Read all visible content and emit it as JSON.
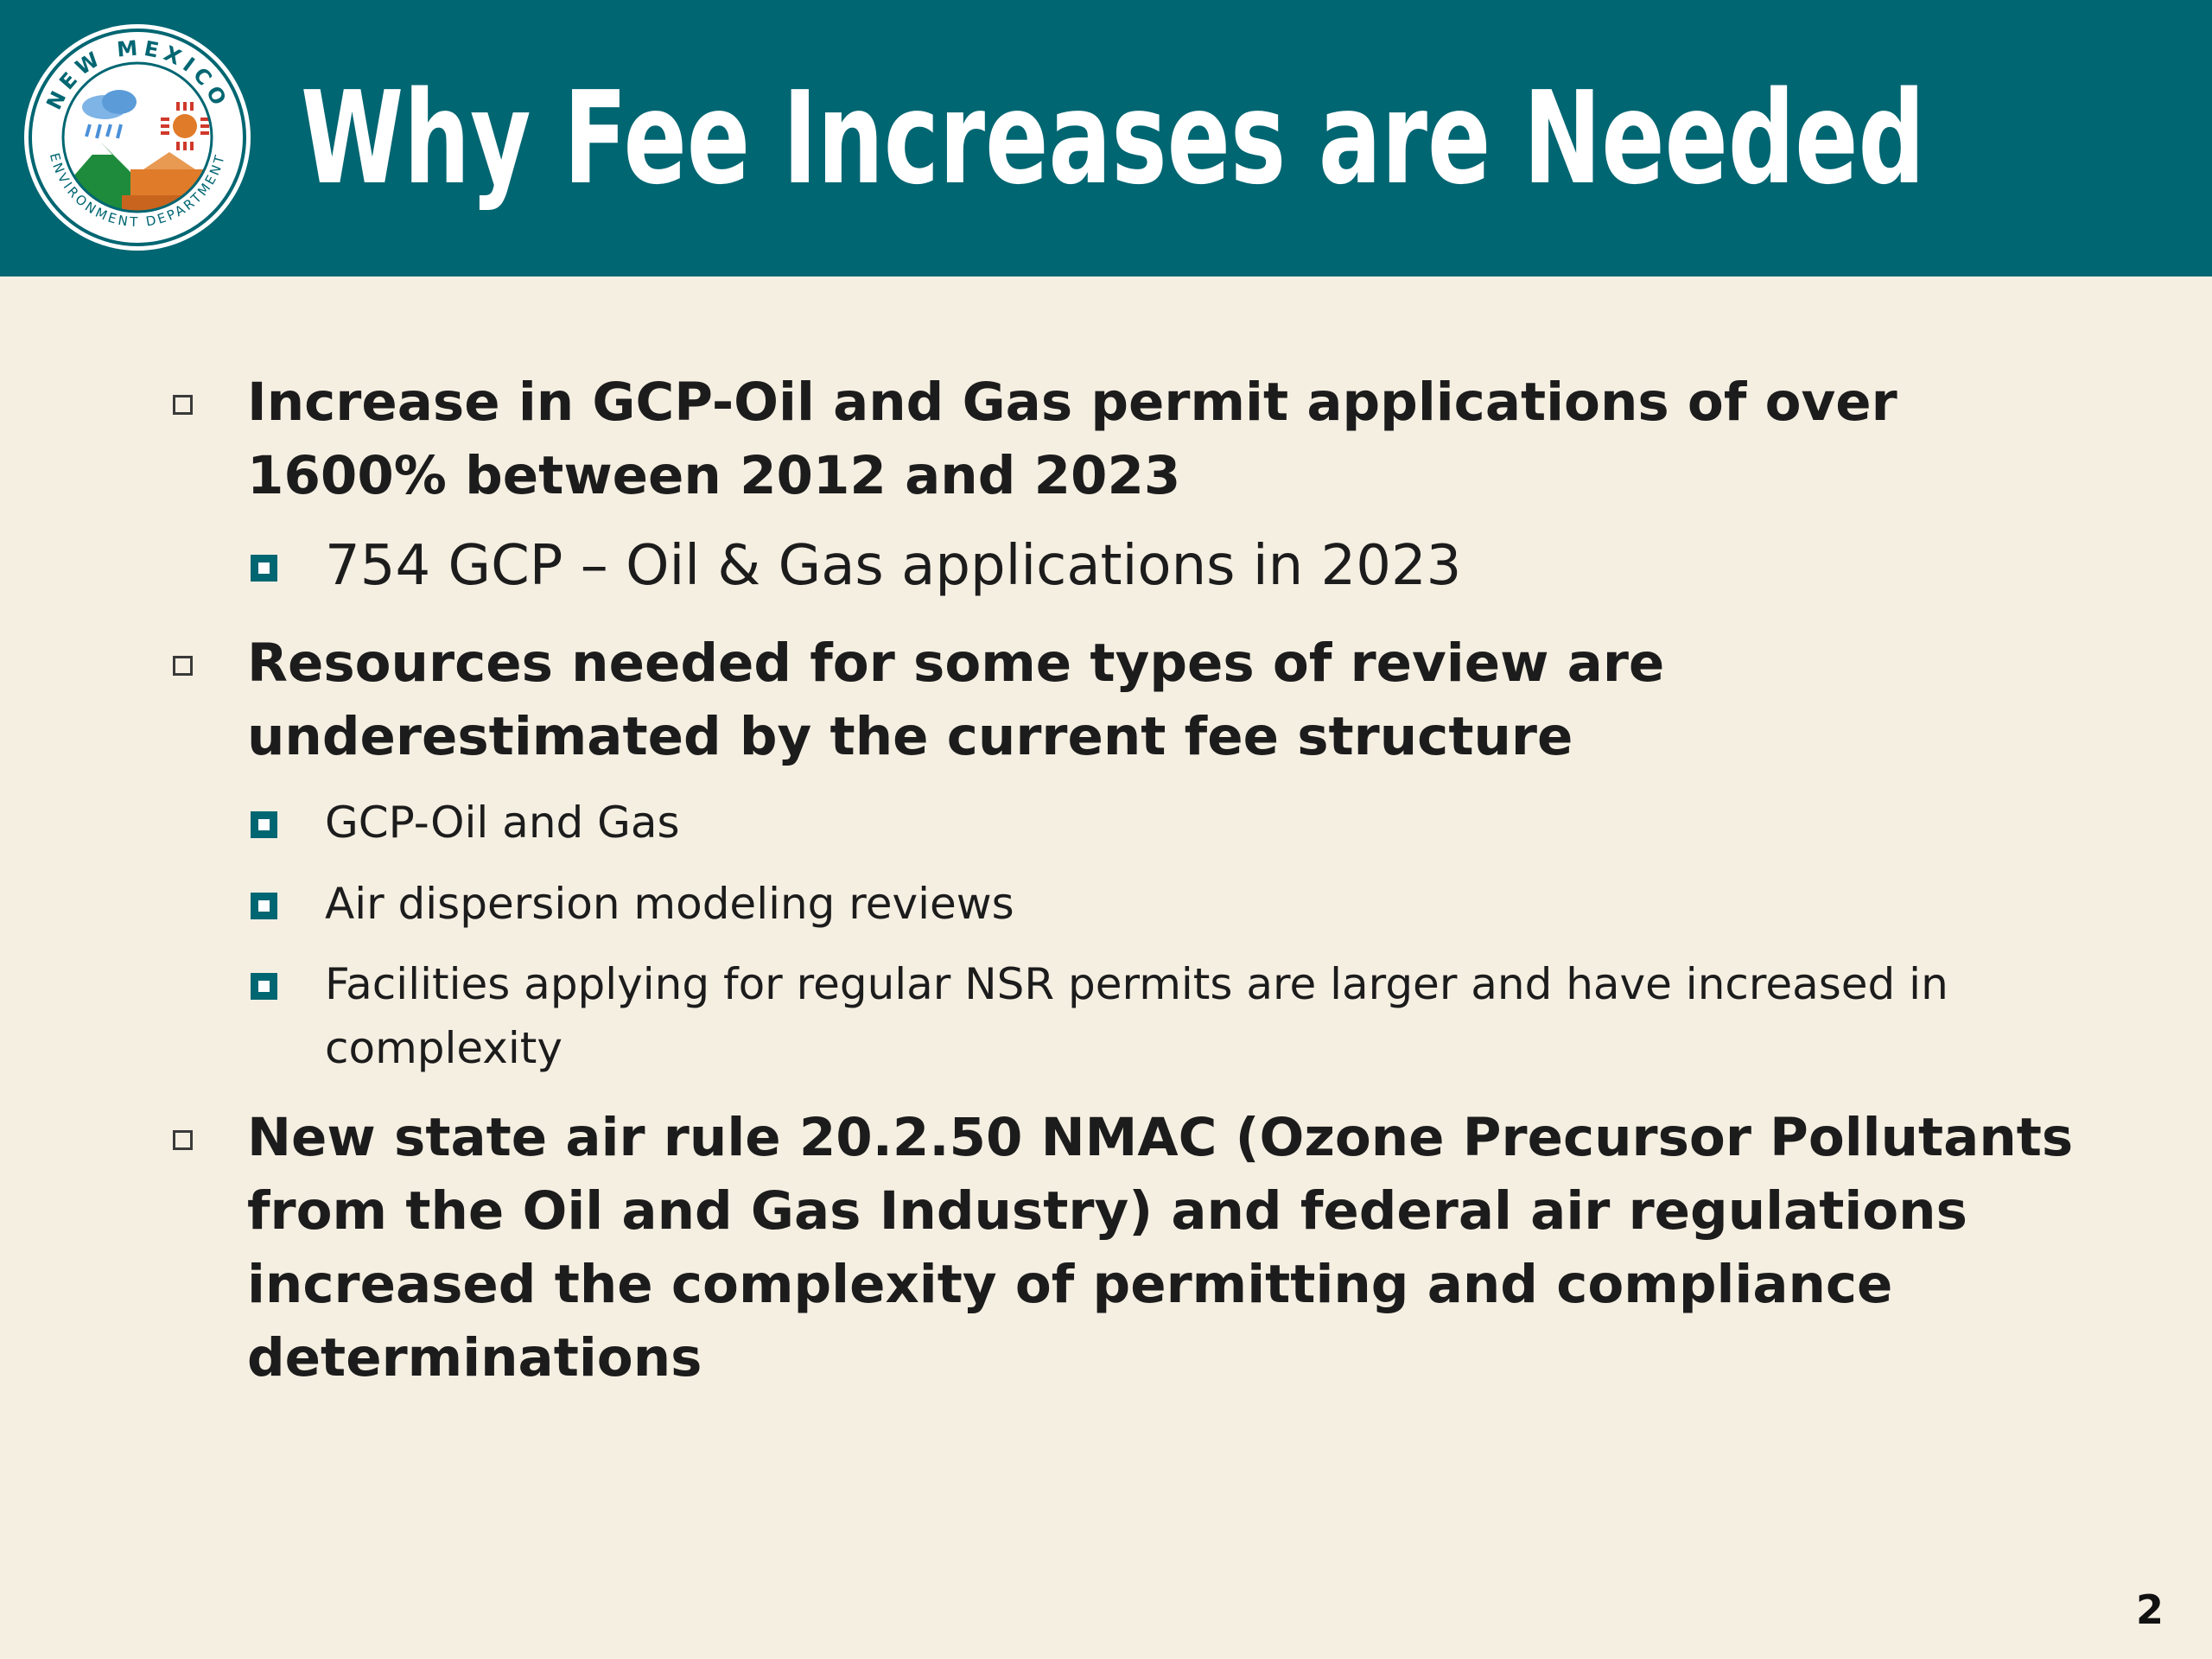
{
  "logo": {
    "ring_text_top": "NEW MEXICO",
    "ring_text_bottom": "ENVIRONMENT DEPARTMENT",
    "colors": {
      "teal": "#006672",
      "orange": "#e07b2a",
      "green": "#1e8b3c",
      "blue": "#4a90d9",
      "red": "#d0392b"
    }
  },
  "slide": {
    "title": "Why Fee Increases are Needed",
    "page_number": "2"
  },
  "bullets": [
    {
      "text": "Increase in GCP-Oil and Gas permit applications of over 1600% between 2012 and 2023",
      "sub": [
        {
          "text": "754 GCP – Oil & Gas applications in 2023"
        }
      ]
    },
    {
      "text": "Resources needed for some types of review are underestimated by the current fee structure",
      "sub": [
        {
          "text": "GCP-Oil and Gas"
        },
        {
          "text": "Air dispersion modeling reviews"
        },
        {
          "text": "Facilities applying for regular NSR permits are larger and have increased in complexity"
        }
      ]
    },
    {
      "text": "New state air rule 20.2.50 NMAC (Ozone Precursor Pollutants from the Oil and Gas Industry) and federal air regulations increased the complexity of permitting and compliance determinations",
      "sub": []
    }
  ],
  "colors": {
    "header_bg": "#006672",
    "slide_bg": "#f5efe2",
    "title_text": "#ffffff",
    "body_text": "#1c1c1c",
    "sub_bullet": "#006672"
  }
}
